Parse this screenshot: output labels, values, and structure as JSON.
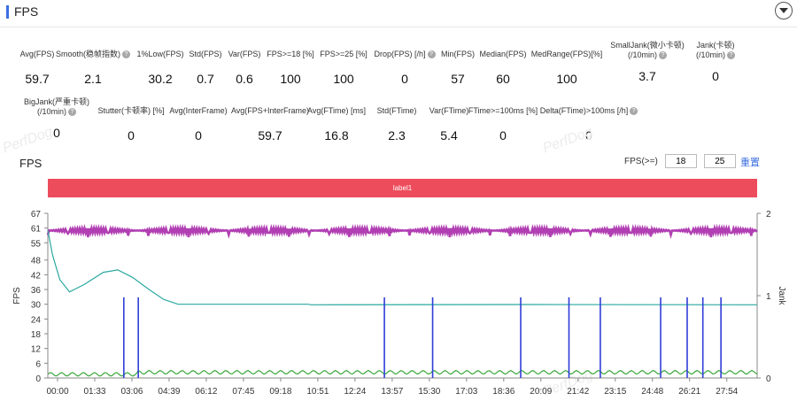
{
  "header": {
    "title": "FPS"
  },
  "metrics_row1": [
    {
      "label": "Avg(FPS)",
      "value": "59.7",
      "help": false
    },
    {
      "label": "Smooth(稳帧指数)",
      "value": "2.1",
      "help": true
    },
    {
      "label": "1%Low(FPS)",
      "value": "30.2",
      "help": false
    },
    {
      "label": "Std(FPS)",
      "value": "0.7",
      "help": false
    },
    {
      "label": "Var(FPS)",
      "value": "0.6",
      "help": false
    },
    {
      "label": "FPS>=18 [%]",
      "value": "100",
      "help": false
    },
    {
      "label": "FPS>=25 [%]",
      "value": "100",
      "help": false
    },
    {
      "label": "Drop(FPS) [/h]",
      "value": "0",
      "help": true
    },
    {
      "label": "Min(FPS)",
      "value": "57",
      "help": false
    },
    {
      "label": "Median(FPS)",
      "value": "60",
      "help": false
    },
    {
      "label": "MedRange(FPS)[%]",
      "value": "100",
      "help": false
    },
    {
      "label": "SmallJank(微小卡顿)",
      "label2": "(/10min)",
      "value": "3.7",
      "help": true
    },
    {
      "label": "Jank(卡顿)",
      "label2": "(/10min)",
      "value": "0",
      "help": true
    }
  ],
  "metrics_row2": [
    {
      "label": "BigJank(严重卡顿)",
      "label2": "(/10min)",
      "value": "0",
      "help": true
    },
    {
      "label": "Stutter(卡顿率) [%]",
      "value": "0",
      "help": false
    },
    {
      "label": "Avg(InterFrame)",
      "value": "0",
      "help": false
    },
    {
      "label": "Avg(FPS+InterFrame)",
      "value": "59.7",
      "help": false
    },
    {
      "label": "Avg(FTime) [ms]",
      "value": "16.8",
      "help": false
    },
    {
      "label": "Std(FTime)",
      "value": "2.3",
      "help": false
    },
    {
      "label": "Var(FTime)",
      "value": "5.4",
      "help": false
    },
    {
      "label": "FTime>=100ms [%]",
      "value": "0",
      "help": false
    },
    {
      "label": "Delta(FTime)>100ms [/h]",
      "value": "0",
      "help": true
    }
  ],
  "watermark": "PerfDog",
  "chart_section": {
    "title": "FPS",
    "threshold_label": "FPS(>=)",
    "threshold_1": "18",
    "threshold_2": "25",
    "reset_label": "重置",
    "label_bar": "label1"
  },
  "colors": {
    "accent": "#3b6fe0",
    "label_bar": "#ed4c5c",
    "fps_line": "#b13fb3",
    "avg_line": "#2aa8a0",
    "jank": "#2f3dd8",
    "interframe": "#3aa83a"
  },
  "chart_data": {
    "type": "line",
    "xlabel": "",
    "ylabel": "FPS",
    "ylabel_right": "Jank",
    "ylim": [
      0,
      67
    ],
    "ylim_right": [
      0,
      2
    ],
    "yticks": [
      0,
      6,
      12,
      18,
      24,
      30,
      36,
      42,
      48,
      55,
      61,
      67
    ],
    "yticks_right": [
      0,
      1,
      2
    ],
    "xticks": [
      "00:00",
      "01:33",
      "03:06",
      "04:39",
      "06:12",
      "07:45",
      "09:18",
      "10:51",
      "12:24",
      "13:57",
      "15:30",
      "17:03",
      "18:36",
      "20:09",
      "21:42",
      "23:15",
      "24:48",
      "26:21",
      "27:54"
    ],
    "x_max_min": 29.4,
    "series": [
      {
        "name": "FPS",
        "values": [
          60,
          60,
          60,
          59.5,
          60,
          60,
          59.5,
          60,
          60,
          60
        ]
      },
      {
        "name": "",
        "points": [
          [
            0,
            60
          ],
          [
            0.2,
            50
          ],
          [
            0.5,
            40
          ],
          [
            0.9,
            35
          ],
          [
            1.5,
            38
          ],
          [
            2.3,
            43
          ],
          [
            2.9,
            44
          ],
          [
            3.5,
            41
          ],
          [
            4.2,
            36
          ],
          [
            4.8,
            32
          ],
          [
            5.4,
            30
          ],
          [
            7,
            30
          ],
          [
            10.8,
            30
          ],
          [
            10.9,
            29.8
          ],
          [
            20,
            29.9
          ],
          [
            29.4,
            29.8
          ]
        ]
      }
    ],
    "jank_minutes": [
      3.15,
      3.75,
      13.95,
      15.95,
      19.6,
      21.6,
      22.9,
      25.4,
      26.5,
      27.15,
      27.9
    ]
  }
}
